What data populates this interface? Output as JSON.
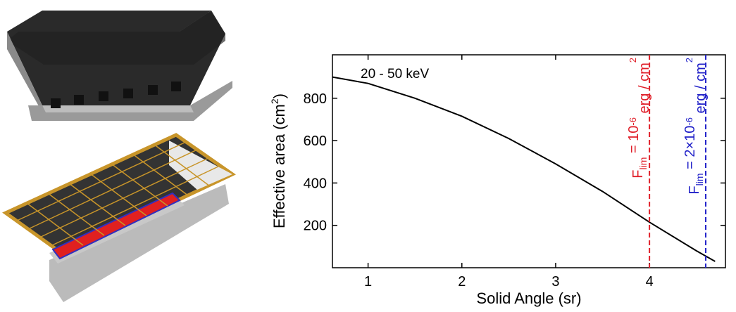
{
  "chart_data": {
    "type": "line",
    "xlabel": "Solid Angle (sr)",
    "ylabel": [
      "Effective area (cm",
      "2",
      ")"
    ],
    "annotation": "20 - 50 keV",
    "xlim": [
      0.62,
      4.81
    ],
    "xticks": [
      1,
      2,
      3,
      4
    ],
    "ylim": [
      0,
      1005
    ],
    "yticks": [
      200,
      400,
      600,
      800
    ],
    "series": [
      {
        "color": "#000000",
        "x": [
          0.62,
          1,
          1.5,
          2,
          2.5,
          3,
          3.5,
          4,
          4.5,
          4.7
        ],
        "values": [
          900,
          870,
          800,
          715,
          610,
          490,
          360,
          215,
          80,
          30
        ]
      }
    ],
    "vlines": [
      {
        "x": 4,
        "color": "#e0202a",
        "label": [
          "F",
          "lim",
          " = 10",
          "-6",
          " erg / cm",
          "2"
        ]
      },
      {
        "x": 4.6,
        "color": "#2020c8",
        "label": [
          "F",
          "lim",
          " = 2×10",
          "-6",
          " erg / cm",
          "2"
        ]
      }
    ]
  }
}
